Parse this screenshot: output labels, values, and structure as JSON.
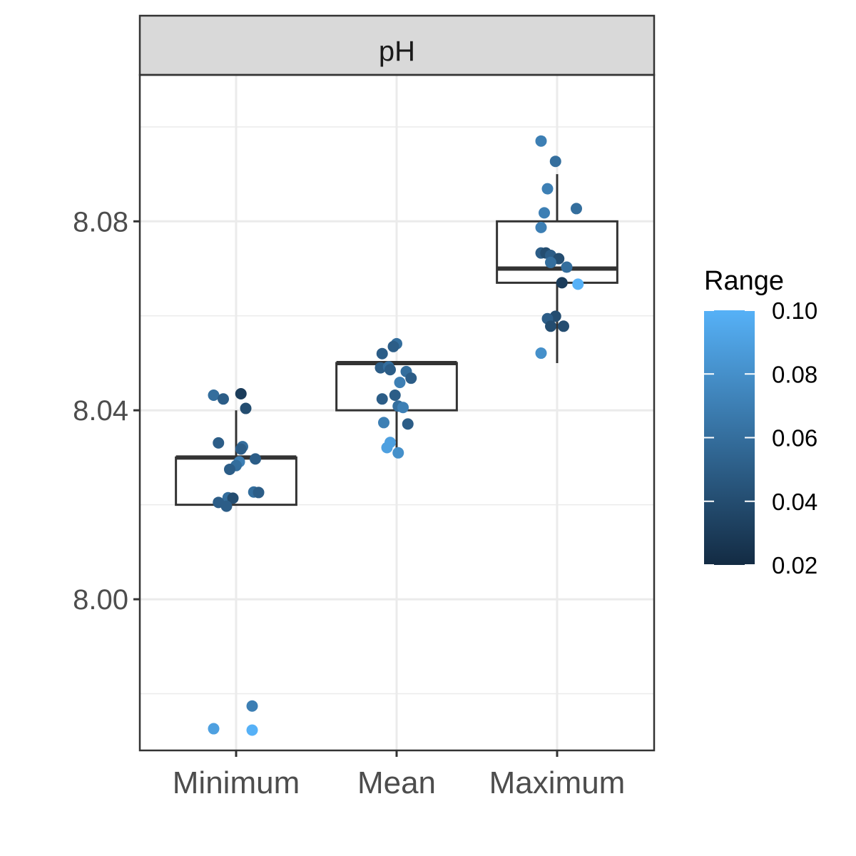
{
  "chart_data": {
    "type": "box",
    "facet_label": "pH",
    "categories": [
      "Minimum",
      "Mean",
      "Maximum"
    ],
    "ylim": [
      7.968,
      8.111
    ],
    "y_ticks": [
      8.0,
      8.04,
      8.08
    ],
    "y_tick_labels": [
      "8.00",
      "8.04",
      "8.08"
    ],
    "grid": true,
    "boxes": [
      {
        "category": "Minimum",
        "lower_whisker": 8.02,
        "q1": 8.02,
        "median": 8.03,
        "q3": 8.03,
        "upper_whisker": 8.04
      },
      {
        "category": "Mean",
        "lower_whisker": 8.031,
        "q1": 8.04,
        "median": 8.05,
        "q3": 8.05,
        "upper_whisker": 8.05
      },
      {
        "category": "Maximum",
        "lower_whisker": 8.05,
        "q1": 8.067,
        "median": 8.07,
        "q3": 8.08,
        "upper_whisker": 8.09
      }
    ],
    "points": [
      {
        "category": "Minimum",
        "offset": -0.14,
        "y": 8.0432,
        "range": 0.06
      },
      {
        "category": "Minimum",
        "offset": -0.08,
        "y": 8.0424,
        "range": 0.05
      },
      {
        "category": "Minimum",
        "offset": 0.03,
        "y": 8.0435,
        "range": 0.03
      },
      {
        "category": "Minimum",
        "offset": 0.06,
        "y": 8.0404,
        "range": 0.04
      },
      {
        "category": "Minimum",
        "offset": -0.11,
        "y": 8.0331,
        "range": 0.05
      },
      {
        "category": "Minimum",
        "offset": 0.04,
        "y": 8.0323,
        "range": 0.06
      },
      {
        "category": "Minimum",
        "offset": 0.03,
        "y": 8.0318,
        "range": 0.05
      },
      {
        "category": "Minimum",
        "offset": 0.12,
        "y": 8.0297,
        "range": 0.05
      },
      {
        "category": "Minimum",
        "offset": 0.02,
        "y": 8.0291,
        "range": 0.07
      },
      {
        "category": "Minimum",
        "offset": 0.0,
        "y": 8.0283,
        "range": 0.06
      },
      {
        "category": "Minimum",
        "offset": -0.04,
        "y": 8.0275,
        "range": 0.05
      },
      {
        "category": "Minimum",
        "offset": 0.11,
        "y": 8.0227,
        "range": 0.06
      },
      {
        "category": "Minimum",
        "offset": 0.14,
        "y": 8.0226,
        "range": 0.05
      },
      {
        "category": "Minimum",
        "offset": -0.05,
        "y": 8.0215,
        "range": 0.06
      },
      {
        "category": "Minimum",
        "offset": -0.02,
        "y": 8.0214,
        "range": 0.04
      },
      {
        "category": "Minimum",
        "offset": -0.11,
        "y": 8.0205,
        "range": 0.05
      },
      {
        "category": "Minimum",
        "offset": -0.06,
        "y": 8.0197,
        "range": 0.05
      },
      {
        "category": "Minimum",
        "offset": 0.1,
        "y": 7.9774,
        "range": 0.07
      },
      {
        "category": "Minimum",
        "offset": -0.14,
        "y": 7.9726,
        "range": 0.09
      },
      {
        "category": "Minimum",
        "offset": 0.1,
        "y": 7.9723,
        "range": 0.1
      },
      {
        "category": "Mean",
        "offset": 0.0,
        "y": 8.0541,
        "range": 0.06
      },
      {
        "category": "Mean",
        "offset": -0.02,
        "y": 8.0535,
        "range": 0.05
      },
      {
        "category": "Mean",
        "offset": -0.09,
        "y": 8.052,
        "range": 0.05
      },
      {
        "category": "Mean",
        "offset": -0.1,
        "y": 8.049,
        "range": 0.05
      },
      {
        "category": "Mean",
        "offset": -0.05,
        "y": 8.0492,
        "range": 0.06
      },
      {
        "category": "Mean",
        "offset": -0.04,
        "y": 8.0486,
        "range": 0.05
      },
      {
        "category": "Mean",
        "offset": 0.06,
        "y": 8.0482,
        "range": 0.06
      },
      {
        "category": "Mean",
        "offset": 0.09,
        "y": 8.0468,
        "range": 0.05
      },
      {
        "category": "Mean",
        "offset": 0.02,
        "y": 8.0459,
        "range": 0.07
      },
      {
        "category": "Mean",
        "offset": -0.01,
        "y": 8.0432,
        "range": 0.05
      },
      {
        "category": "Mean",
        "offset": -0.09,
        "y": 8.0424,
        "range": 0.05
      },
      {
        "category": "Mean",
        "offset": 0.01,
        "y": 8.0409,
        "range": 0.06
      },
      {
        "category": "Mean",
        "offset": 0.04,
        "y": 8.0406,
        "range": 0.07
      },
      {
        "category": "Mean",
        "offset": -0.08,
        "y": 8.0374,
        "range": 0.07
      },
      {
        "category": "Mean",
        "offset": 0.07,
        "y": 8.0371,
        "range": 0.05
      },
      {
        "category": "Mean",
        "offset": -0.04,
        "y": 8.0332,
        "range": 0.09
      },
      {
        "category": "Mean",
        "offset": -0.06,
        "y": 8.0321,
        "range": 0.09
      },
      {
        "category": "Mean",
        "offset": 0.01,
        "y": 8.031,
        "range": 0.08
      },
      {
        "category": "Maximum",
        "offset": -0.1,
        "y": 8.097,
        "range": 0.07
      },
      {
        "category": "Maximum",
        "offset": -0.01,
        "y": 8.0927,
        "range": 0.06
      },
      {
        "category": "Maximum",
        "offset": -0.06,
        "y": 8.0869,
        "range": 0.07
      },
      {
        "category": "Maximum",
        "offset": 0.12,
        "y": 8.0827,
        "range": 0.06
      },
      {
        "category": "Maximum",
        "offset": -0.08,
        "y": 8.0818,
        "range": 0.07
      },
      {
        "category": "Maximum",
        "offset": -0.1,
        "y": 8.0787,
        "range": 0.07
      },
      {
        "category": "Maximum",
        "offset": -0.1,
        "y": 8.0733,
        "range": 0.05
      },
      {
        "category": "Maximum",
        "offset": -0.07,
        "y": 8.0733,
        "range": 0.04
      },
      {
        "category": "Maximum",
        "offset": -0.04,
        "y": 8.0728,
        "range": 0.05
      },
      {
        "category": "Maximum",
        "offset": 0.01,
        "y": 8.0721,
        "range": 0.04
      },
      {
        "category": "Maximum",
        "offset": -0.04,
        "y": 8.0713,
        "range": 0.06
      },
      {
        "category": "Maximum",
        "offset": 0.06,
        "y": 8.0703,
        "range": 0.06
      },
      {
        "category": "Maximum",
        "offset": 0.03,
        "y": 8.067,
        "range": 0.03
      },
      {
        "category": "Maximum",
        "offset": 0.13,
        "y": 8.0667,
        "range": 0.1
      },
      {
        "category": "Maximum",
        "offset": -0.01,
        "y": 8.0599,
        "range": 0.04
      },
      {
        "category": "Maximum",
        "offset": -0.06,
        "y": 8.0594,
        "range": 0.05
      },
      {
        "category": "Maximum",
        "offset": -0.04,
        "y": 8.0578,
        "range": 0.04
      },
      {
        "category": "Maximum",
        "offset": 0.04,
        "y": 8.0578,
        "range": 0.04
      },
      {
        "category": "Maximum",
        "offset": -0.1,
        "y": 8.0521,
        "range": 0.08
      }
    ],
    "legend": {
      "title": "Range",
      "position": "right",
      "min": 0.02,
      "max": 0.1,
      "ticks": [
        0.02,
        0.04,
        0.06,
        0.08,
        0.1
      ],
      "tick_labels": [
        "0.02",
        "0.04",
        "0.06",
        "0.08",
        "0.10"
      ],
      "color_low": "#132B43",
      "color_high": "#56B1F7"
    }
  }
}
